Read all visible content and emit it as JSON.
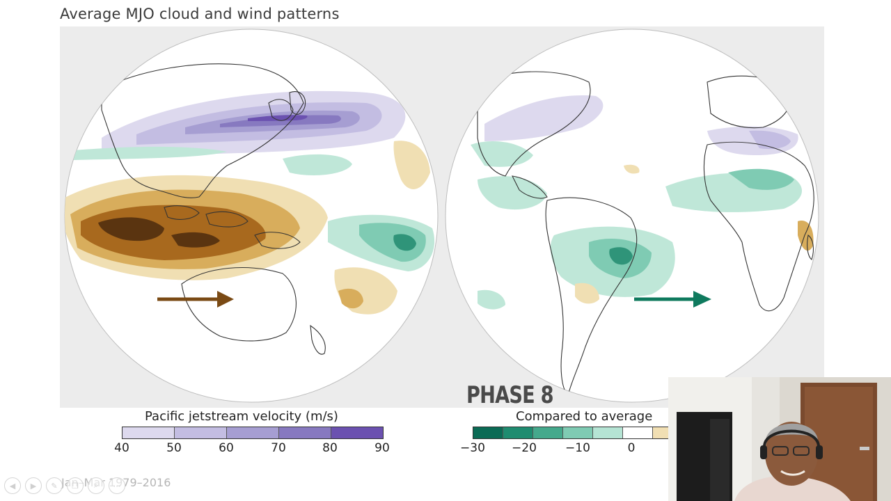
{
  "slide": {
    "title": "Average MJO cloud and wind patterns",
    "phase_label": "PHASE 8",
    "footnote": "Jan–Mar 1979–2016"
  },
  "legend_jet": {
    "title": "Pacific jetstream velocity (m/s)",
    "ticks": [
      "40",
      "50",
      "60",
      "70",
      "80",
      "90"
    ],
    "colors": [
      "#ddd9ee",
      "#c3bde2",
      "#a69ed2",
      "#8779c0",
      "#6b51b0"
    ]
  },
  "legend_anomaly": {
    "title": "Compared to average",
    "ticks": [
      "−30",
      "−20",
      "−10",
      "0"
    ],
    "colors": [
      "#0b6b55",
      "#1f8c70",
      "#45a98c",
      "#7fcbb3",
      "#b5e4d4",
      "#ffffff",
      "#f1dfb3"
    ]
  },
  "arrows": {
    "left_color": "#7a4a14",
    "right_color": "#0f7a5e"
  },
  "colors": {
    "map_panel_bg": "#ececec",
    "brown_light": "#f0dfb3",
    "brown_mid": "#d8ad5c",
    "brown_dark": "#a8691e",
    "brown_darkest": "#5a3410",
    "teal_light": "#bfe7d8",
    "teal_mid": "#7fcbb3",
    "teal_dark": "#2f9479"
  },
  "nav": {
    "icons": [
      "arrow-left-icon",
      "arrow-right-icon",
      "pen-icon",
      "copy-icon",
      "zoom-icon",
      "more-icon"
    ]
  }
}
